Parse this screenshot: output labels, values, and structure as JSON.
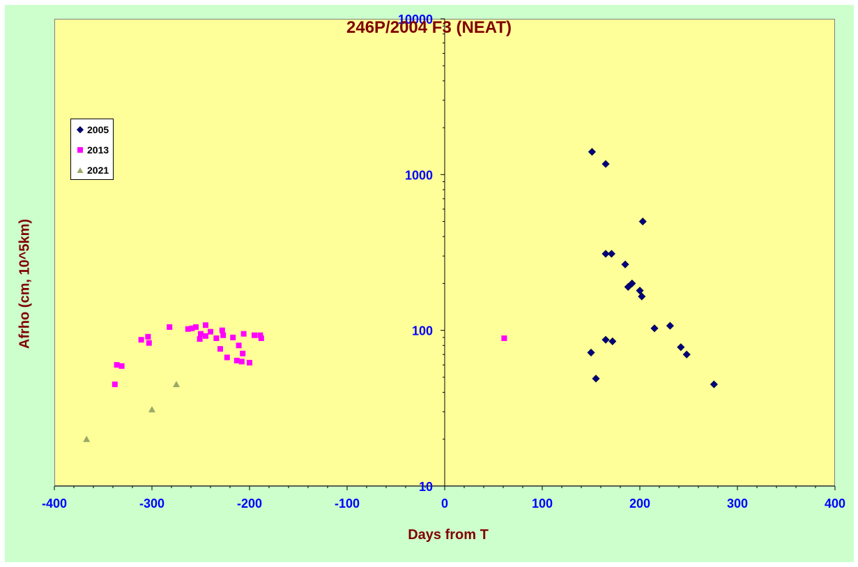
{
  "chart_data": {
    "type": "scatter",
    "title": "246P/2004 F3 (NEAT)",
    "xlabel": "Days from T",
    "ylabel": "Afrho (cm, 10^5km)",
    "xlim": [
      -400,
      400
    ],
    "ylim": [
      10,
      10000
    ],
    "yscale": "log",
    "x_ticks": [
      -400,
      -300,
      -200,
      -100,
      0,
      100,
      200,
      300,
      400
    ],
    "y_ticks": [
      10,
      100,
      1000,
      10000
    ],
    "x_tick_labels": [
      "-400",
      "-300",
      "-200",
      "-100",
      "0",
      "100",
      "200",
      "300",
      "400"
    ],
    "y_tick_labels": [
      "10",
      "100",
      "1000",
      "10000"
    ],
    "grid": false,
    "legend_position": "upper-left",
    "colors": {
      "chart_background": "#ccffcc",
      "plot_background": "#ffff99",
      "title": "#800000",
      "axis_labels": "#0000ff"
    },
    "series": [
      {
        "name": "2005",
        "marker": "diamond",
        "color": "#000080",
        "points": [
          [
            151,
            1400
          ],
          [
            165,
            1170
          ],
          [
            203,
            500
          ],
          [
            165,
            310
          ],
          [
            171,
            310
          ],
          [
            185,
            265
          ],
          [
            188,
            190
          ],
          [
            192,
            200
          ],
          [
            200,
            180
          ],
          [
            202,
            165
          ],
          [
            231,
            107
          ],
          [
            215,
            103
          ],
          [
            165,
            87
          ],
          [
            172,
            85
          ],
          [
            150,
            72
          ],
          [
            242,
            78
          ],
          [
            248,
            70
          ],
          [
            155,
            49
          ],
          [
            276,
            45
          ]
        ]
      },
      {
        "name": "2013",
        "marker": "square",
        "color": "#ff00ff",
        "points": [
          [
            -282,
            105
          ],
          [
            -263,
            102
          ],
          [
            -259,
            103
          ],
          [
            -255,
            105
          ],
          [
            -245,
            108
          ],
          [
            -240,
            98
          ],
          [
            -250,
            95
          ],
          [
            -245,
            92
          ],
          [
            -251,
            88
          ],
          [
            -234,
            89
          ],
          [
            -228,
            100
          ],
          [
            -227,
            93
          ],
          [
            -217,
            90
          ],
          [
            -206,
            95
          ],
          [
            -195,
            93
          ],
          [
            -189,
            93
          ],
          [
            -188,
            89
          ],
          [
            -311,
            87
          ],
          [
            -304,
            91
          ],
          [
            -303,
            83
          ],
          [
            -230,
            76
          ],
          [
            -211,
            80
          ],
          [
            -207,
            71
          ],
          [
            -223,
            67
          ],
          [
            -213,
            64
          ],
          [
            -208,
            63
          ],
          [
            -200,
            62
          ],
          [
            -336,
            60
          ],
          [
            -331,
            59
          ],
          [
            -338,
            45
          ],
          [
            61,
            89
          ]
        ]
      },
      {
        "name": "2021",
        "marker": "triangle",
        "color": "#99aa66",
        "points": [
          [
            -275,
            45
          ],
          [
            -300,
            31
          ],
          [
            -367,
            20
          ]
        ]
      }
    ]
  }
}
